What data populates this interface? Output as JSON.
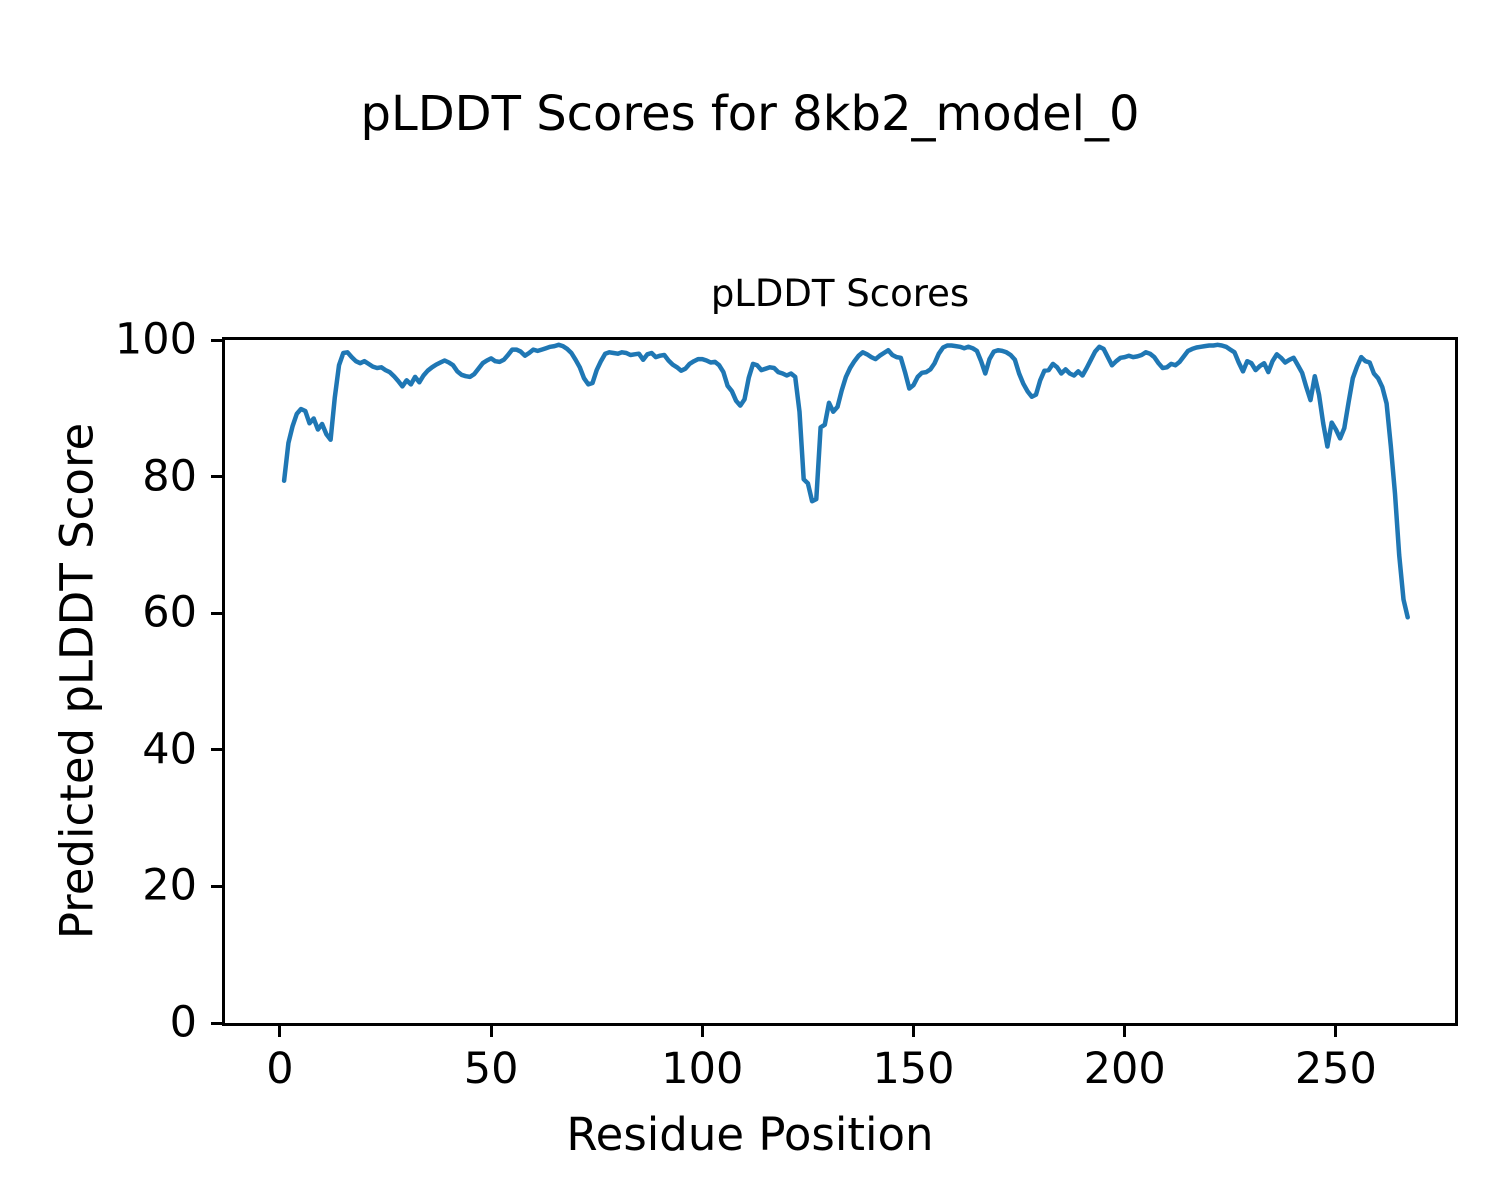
{
  "figure": {
    "suptitle": "pLDDT Scores for 8kb2_model_0"
  },
  "chart_data": {
    "type": "line",
    "title": "pLDDT Scores",
    "xlabel": "Residue Position",
    "ylabel": "Predicted pLDDT Score",
    "x_ticks": [
      0,
      50,
      100,
      150,
      200,
      250
    ],
    "y_ticks": [
      0,
      20,
      40,
      60,
      80,
      100
    ],
    "xlim": [
      -13,
      278.2
    ],
    "ylim": [
      0,
      100
    ],
    "grid": false,
    "line_color": "#1f77b4",
    "line_width": 4.5,
    "series": [
      {
        "name": "pLDDT",
        "x_start": 1,
        "x_step": 1,
        "values": [
          79.4,
          84.9,
          87.4,
          89.2,
          89.9,
          89.6,
          87.8,
          88.5,
          86.9,
          87.7,
          86.2,
          85.4,
          91.6,
          96.3,
          98.1,
          98.2,
          97.5,
          96.9,
          96.6,
          96.9,
          96.5,
          96.1,
          95.9,
          96.0,
          95.6,
          95.3,
          94.7,
          94.0,
          93.2,
          94.1,
          93.5,
          94.6,
          93.8,
          94.8,
          95.5,
          96.0,
          96.4,
          96.7,
          97.0,
          96.7,
          96.3,
          95.4,
          94.9,
          94.7,
          94.6,
          95.0,
          95.8,
          96.6,
          97.0,
          97.3,
          96.9,
          96.8,
          97.1,
          97.8,
          98.6,
          98.6,
          98.3,
          97.7,
          98.1,
          98.6,
          98.4,
          98.6,
          98.8,
          99.0,
          99.1,
          99.3,
          99.1,
          98.7,
          98.1,
          97.1,
          96.0,
          94.4,
          93.5,
          93.7,
          95.6,
          96.9,
          98.0,
          98.2,
          98.1,
          98.0,
          98.2,
          98.1,
          97.8,
          97.9,
          98.0,
          97.1,
          97.9,
          98.1,
          97.5,
          97.7,
          97.8,
          97.0,
          96.4,
          96.0,
          95.5,
          95.8,
          96.5,
          96.9,
          97.2,
          97.2,
          97.0,
          96.7,
          96.8,
          96.3,
          95.3,
          93.3,
          92.5,
          91.1,
          90.4,
          91.3,
          94.5,
          96.5,
          96.3,
          95.6,
          95.8,
          96.0,
          95.9,
          95.3,
          95.1,
          94.8,
          95.1,
          94.6,
          89.5,
          79.6,
          79.0,
          76.4,
          76.7,
          87.2,
          87.6,
          90.8,
          89.5,
          90.2,
          92.6,
          94.6,
          95.9,
          96.9,
          97.7,
          98.2,
          97.9,
          97.5,
          97.2,
          97.7,
          98.1,
          98.5,
          97.8,
          97.5,
          97.4,
          95.3,
          92.9,
          93.4,
          94.6,
          95.2,
          95.3,
          95.7,
          96.6,
          98.0,
          98.9,
          99.2,
          99.2,
          99.1,
          99.0,
          98.8,
          99.0,
          98.8,
          98.4,
          96.9,
          95.1,
          97.2,
          98.3,
          98.5,
          98.4,
          98.2,
          97.8,
          97.1,
          95.1,
          93.6,
          92.5,
          91.7,
          92.0,
          94.1,
          95.5,
          95.6,
          96.5,
          96.0,
          95.1,
          95.7,
          95.1,
          94.8,
          95.4,
          94.8,
          95.9,
          97.1,
          98.3,
          99.0,
          98.7,
          97.5,
          96.3,
          96.9,
          97.4,
          97.5,
          97.7,
          97.5,
          97.6,
          97.8,
          98.2,
          98.0,
          97.5,
          96.6,
          95.9,
          96.0,
          96.5,
          96.3,
          96.8,
          97.6,
          98.4,
          98.7,
          98.9,
          99.0,
          99.1,
          99.2,
          99.2,
          99.3,
          99.2,
          99.0,
          98.6,
          98.2,
          96.7,
          95.4,
          96.9,
          96.6,
          95.6,
          96.2,
          96.6,
          95.3,
          96.9,
          97.9,
          97.4,
          96.7,
          97.1,
          97.4,
          96.3,
          95.2,
          93.1,
          91.2,
          94.7,
          92.0,
          87.8,
          84.4,
          87.9,
          86.9,
          85.6,
          87.1,
          90.9,
          94.4,
          96.1,
          97.5,
          96.9,
          96.7,
          95.1,
          94.4,
          93.1,
          90.7,
          84.5,
          77.5,
          68.5,
          62.0,
          59.4
        ]
      }
    ]
  }
}
